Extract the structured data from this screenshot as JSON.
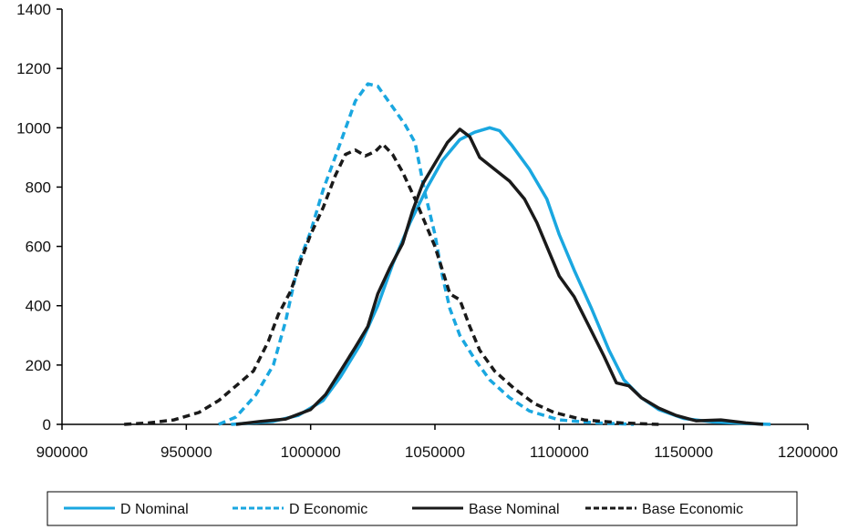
{
  "chart_data": {
    "type": "line",
    "xlim": [
      900000,
      1200000
    ],
    "ylim": [
      0,
      1400
    ],
    "x_ticks": [
      900000,
      950000,
      1000000,
      1050000,
      1100000,
      1150000,
      1200000
    ],
    "y_ticks": [
      0,
      200,
      400,
      600,
      800,
      1000,
      1200,
      1400
    ],
    "x_tick_labels": [
      "900000",
      "950000",
      "1000000",
      "1050000",
      "1100000",
      "1150000",
      "1200000"
    ],
    "y_tick_labels": [
      "0",
      "200",
      "400",
      "600",
      "800",
      "1000",
      "1200",
      "1400"
    ],
    "grid": false,
    "legend_position": "bottom",
    "series": [
      {
        "name": "D Nominal",
        "color": "#1aa7e0",
        "dash": "solid",
        "points": [
          [
            968000,
            0
          ],
          [
            985000,
            10
          ],
          [
            995000,
            30
          ],
          [
            1005000,
            80
          ],
          [
            1012000,
            160
          ],
          [
            1020000,
            270
          ],
          [
            1027000,
            400
          ],
          [
            1033000,
            540
          ],
          [
            1040000,
            680
          ],
          [
            1047000,
            800
          ],
          [
            1053000,
            890
          ],
          [
            1060000,
            960
          ],
          [
            1066000,
            985
          ],
          [
            1072000,
            1000
          ],
          [
            1076000,
            990
          ],
          [
            1081000,
            940
          ],
          [
            1088000,
            860
          ],
          [
            1095000,
            760
          ],
          [
            1100000,
            640
          ],
          [
            1106000,
            520
          ],
          [
            1113000,
            390
          ],
          [
            1120000,
            250
          ],
          [
            1126000,
            150
          ],
          [
            1133000,
            90
          ],
          [
            1140000,
            50
          ],
          [
            1150000,
            20
          ],
          [
            1162000,
            8
          ],
          [
            1175000,
            3
          ],
          [
            1185000,
            0
          ]
        ]
      },
      {
        "name": "D Economic",
        "color": "#1aa7e0",
        "dash": "dashed",
        "points": [
          [
            963000,
            0
          ],
          [
            970000,
            25
          ],
          [
            978000,
            100
          ],
          [
            985000,
            200
          ],
          [
            990000,
            350
          ],
          [
            995000,
            540
          ],
          [
            1000000,
            650
          ],
          [
            1005000,
            790
          ],
          [
            1012000,
            950
          ],
          [
            1018000,
            1090
          ],
          [
            1023000,
            1148
          ],
          [
            1027000,
            1140
          ],
          [
            1033000,
            1070
          ],
          [
            1038000,
            1010
          ],
          [
            1042000,
            950
          ],
          [
            1046000,
            780
          ],
          [
            1050000,
            640
          ],
          [
            1053000,
            500
          ],
          [
            1056000,
            390
          ],
          [
            1060000,
            300
          ],
          [
            1066000,
            220
          ],
          [
            1072000,
            150
          ],
          [
            1080000,
            90
          ],
          [
            1088000,
            45
          ],
          [
            1100000,
            15
          ],
          [
            1115000,
            5
          ],
          [
            1130000,
            0
          ]
        ]
      },
      {
        "name": "Base Nominal",
        "color": "#1a1a1a",
        "dash": "solid",
        "points": [
          [
            970000,
            0
          ],
          [
            980000,
            10
          ],
          [
            990000,
            18
          ],
          [
            1000000,
            50
          ],
          [
            1006000,
            100
          ],
          [
            1012000,
            180
          ],
          [
            1018000,
            260
          ],
          [
            1023000,
            330
          ],
          [
            1027000,
            440
          ],
          [
            1032000,
            530
          ],
          [
            1037000,
            610
          ],
          [
            1041000,
            720
          ],
          [
            1045000,
            810
          ],
          [
            1050000,
            880
          ],
          [
            1055000,
            950
          ],
          [
            1060000,
            995
          ],
          [
            1064000,
            970
          ],
          [
            1068000,
            900
          ],
          [
            1074000,
            860
          ],
          [
            1080000,
            820
          ],
          [
            1086000,
            760
          ],
          [
            1091000,
            680
          ],
          [
            1096000,
            580
          ],
          [
            1100000,
            500
          ],
          [
            1106000,
            430
          ],
          [
            1112000,
            330
          ],
          [
            1118000,
            230
          ],
          [
            1123000,
            140
          ],
          [
            1128000,
            130
          ],
          [
            1133000,
            90
          ],
          [
            1140000,
            55
          ],
          [
            1147000,
            30
          ],
          [
            1155000,
            12
          ],
          [
            1165000,
            15
          ],
          [
            1175000,
            5
          ],
          [
            1182000,
            0
          ]
        ]
      },
      {
        "name": "Base Economic",
        "color": "#1a1a1a",
        "dash": "dashed",
        "points": [
          [
            925000,
            0
          ],
          [
            935000,
            5
          ],
          [
            945000,
            15
          ],
          [
            955000,
            40
          ],
          [
            963000,
            80
          ],
          [
            970000,
            130
          ],
          [
            977000,
            180
          ],
          [
            983000,
            280
          ],
          [
            987000,
            370
          ],
          [
            992000,
            450
          ],
          [
            996000,
            550
          ],
          [
            1000000,
            640
          ],
          [
            1005000,
            730
          ],
          [
            1010000,
            840
          ],
          [
            1014000,
            910
          ],
          [
            1018000,
            925
          ],
          [
            1022000,
            905
          ],
          [
            1026000,
            920
          ],
          [
            1029000,
            945
          ],
          [
            1033000,
            910
          ],
          [
            1037000,
            850
          ],
          [
            1042000,
            760
          ],
          [
            1046000,
            680
          ],
          [
            1050000,
            600
          ],
          [
            1053000,
            520
          ],
          [
            1056000,
            440
          ],
          [
            1060000,
            420
          ],
          [
            1064000,
            330
          ],
          [
            1068000,
            250
          ],
          [
            1074000,
            180
          ],
          [
            1082000,
            120
          ],
          [
            1090000,
            70
          ],
          [
            1098000,
            40
          ],
          [
            1110000,
            15
          ],
          [
            1125000,
            5
          ],
          [
            1140000,
            0
          ]
        ]
      }
    ]
  }
}
